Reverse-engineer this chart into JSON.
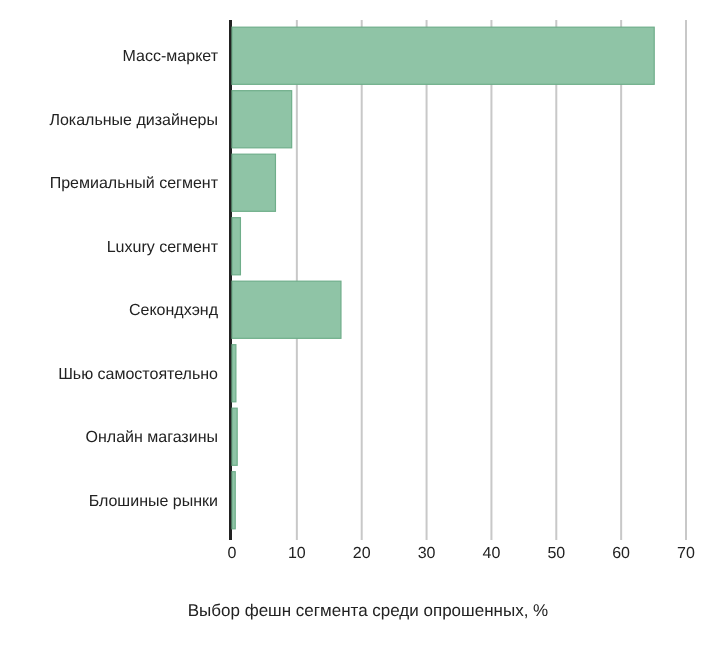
{
  "chart_data": {
    "type": "bar",
    "orientation": "horizontal",
    "title": "Выбор фешн сегмента среди опрошенных, %",
    "categories": [
      "Масс-маркет",
      "Локальные дизайнеры",
      "Премиальный сегмент",
      "Luxury сегмент",
      "Секондхэнд",
      "Шью самостоятельно",
      "Онлайн магазины",
      "Блошиные рынки"
    ],
    "values": [
      65.1,
      9.2,
      6.7,
      1.3,
      16.8,
      0.6,
      0.8,
      0.5
    ],
    "color": "#8fc4a6",
    "xlim": [
      0,
      70
    ],
    "xticks": [
      0,
      10,
      20,
      30,
      40,
      50,
      60,
      70
    ],
    "grid": "x"
  }
}
